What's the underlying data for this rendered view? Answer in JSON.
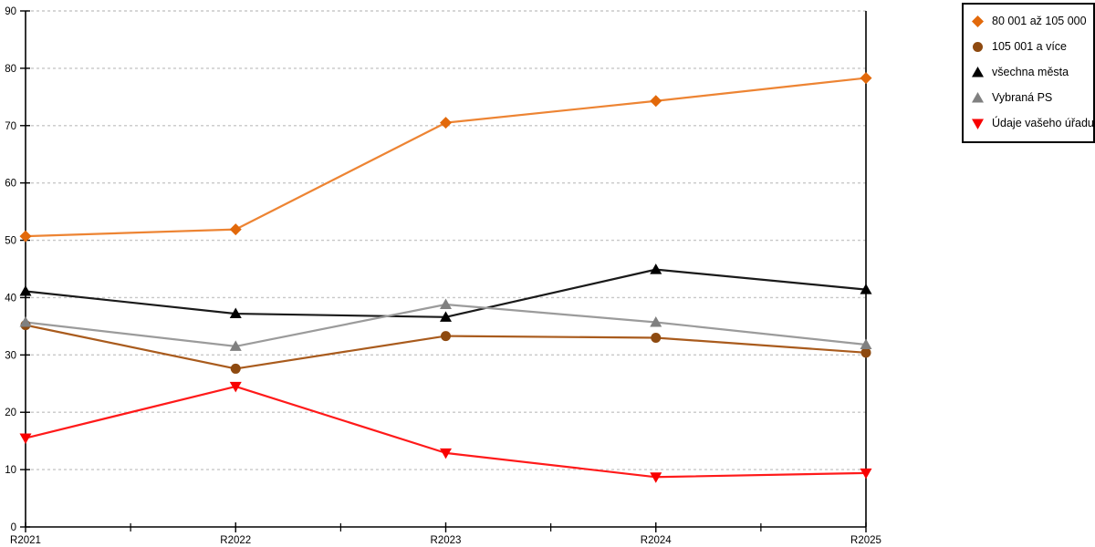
{
  "page": {
    "background_color": "#FFFFFF",
    "axis_color": "#000000",
    "grid_color": "#C8C8C8",
    "text_color": "#000000"
  },
  "chart_data": {
    "type": "line",
    "title": "",
    "xlabel": "",
    "ylabel": "",
    "categories": [
      "R2021",
      "R2022",
      "R2023",
      "R2024",
      "R2025"
    ],
    "ylim": [
      0,
      90
    ],
    "yticks": [
      0,
      10,
      20,
      30,
      40,
      50,
      60,
      70,
      80,
      90
    ],
    "grid": "horizontal-dashed",
    "legend_position": "top-right",
    "series": [
      {
        "name": "80 001 až 105 000",
        "marker": "diamond",
        "color": "#E2690B",
        "line_color": "#ED8433",
        "values": [
          50.7,
          51.9,
          70.5,
          74.3,
          78.3
        ]
      },
      {
        "name": "105 001 a více",
        "marker": "circle",
        "color": "#8E4A10",
        "line_color": "#A95B1D",
        "values": [
          35.2,
          27.6,
          33.3,
          33.0,
          30.4
        ]
      },
      {
        "name": "všechna města",
        "marker": "triangle-up",
        "color": "#000000",
        "line_color": "#1A1A1A",
        "values": [
          41.1,
          37.2,
          36.6,
          44.9,
          41.4
        ]
      },
      {
        "name": "Vybraná PS",
        "marker": "triangle-up",
        "color": "#808080",
        "line_color": "#9B9B9B",
        "values": [
          35.7,
          31.5,
          38.8,
          35.7,
          31.8
        ]
      },
      {
        "name": "Údaje vašeho úřadu",
        "marker": "triangle-down",
        "color": "#F80000",
        "line_color": "#FF1A1A",
        "values": [
          15.5,
          24.5,
          12.9,
          8.7,
          9.4
        ]
      }
    ]
  }
}
